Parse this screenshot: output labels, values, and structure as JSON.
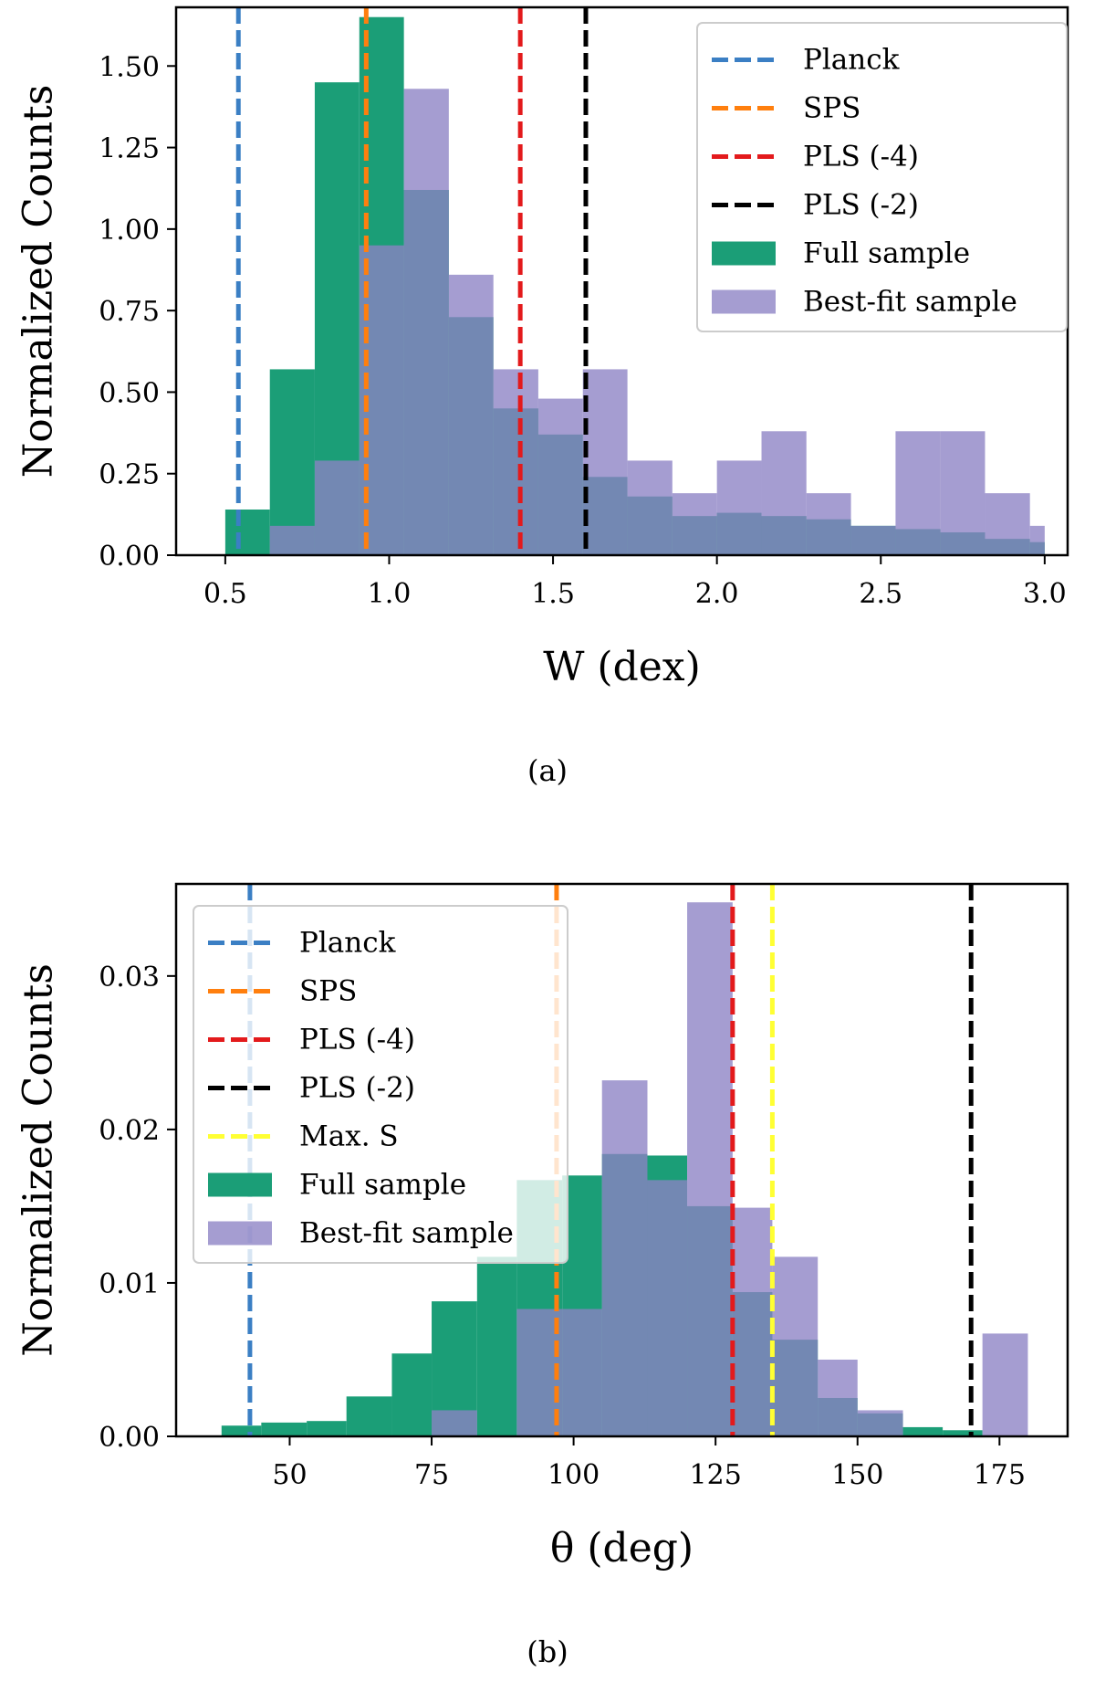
{
  "chart_data": [
    {
      "type": "bar",
      "panel_label": "(a)",
      "xlabel": "W (dex)",
      "ylabel": "Normalized Counts",
      "xlim": [
        0.35,
        3.07
      ],
      "ylim": [
        0,
        1.68
      ],
      "xticks": [
        0.5,
        1.0,
        1.5,
        2.0,
        2.5,
        3.0
      ],
      "xtick_labels": [
        "0.5",
        "1.0",
        "1.5",
        "2.0",
        "2.5",
        "3.0"
      ],
      "yticks": [
        0,
        0.25,
        0.5,
        0.75,
        1.0,
        1.25,
        1.5
      ],
      "ytick_labels": [
        "0.00",
        "0.25",
        "0.50",
        "0.75",
        "1.00",
        "1.25",
        "1.50"
      ],
      "grid": false,
      "legend_position": "top-right",
      "series": [
        {
          "name": "Full sample",
          "color": "#1b9e77",
          "bin_edges": [
            0.5,
            0.636,
            0.773,
            0.909,
            1.045,
            1.182,
            1.318,
            1.455,
            1.591,
            1.727,
            1.864,
            2.0,
            2.136,
            2.273,
            2.409,
            2.545,
            2.682,
            2.818,
            2.955,
            3.0
          ],
          "values": [
            0.14,
            0.57,
            1.45,
            1.65,
            1.12,
            0.73,
            0.45,
            0.37,
            0.24,
            0.18,
            0.12,
            0.13,
            0.12,
            0.11,
            0.09,
            0.08,
            0.07,
            0.05,
            0.04
          ]
        },
        {
          "name": "Best-fit sample",
          "color": "#8c82c4",
          "bin_edges": [
            0.636,
            0.773,
            0.909,
            1.045,
            1.182,
            1.318,
            1.455,
            1.591,
            1.727,
            1.864,
            2.0,
            2.136,
            2.273,
            2.409,
            2.545,
            2.682,
            2.818,
            2.955,
            3.0
          ],
          "values": [
            0.09,
            0.29,
            0.95,
            1.43,
            0.86,
            0.57,
            0.48,
            0.57,
            0.29,
            0.19,
            0.29,
            0.38,
            0.19,
            0.09,
            0.38,
            0.38,
            0.19,
            0.09
          ]
        }
      ],
      "vlines": [
        {
          "name": "Planck",
          "x": 0.54,
          "color": "#3b7fc4"
        },
        {
          "name": "SPS",
          "x": 0.93,
          "color": "#ff7f0e"
        },
        {
          "name": "PLS (-4)",
          "x": 1.4,
          "color": "#e31a1c"
        },
        {
          "name": "PLS (-2)",
          "x": 1.6,
          "color": "#000000"
        }
      ],
      "legend": [
        "Planck",
        "SPS",
        "PLS (-4)",
        "PLS (-2)",
        "Full sample",
        "Best-fit sample"
      ]
    },
    {
      "type": "bar",
      "panel_label": "(b)",
      "xlabel": "θ (deg)",
      "ylabel": "Normalized Counts",
      "xlim": [
        30,
        187
      ],
      "ylim": [
        0,
        0.036
      ],
      "xticks": [
        50,
        75,
        100,
        125,
        150,
        175
      ],
      "xtick_labels": [
        "50",
        "75",
        "100",
        "125",
        "150",
        "175"
      ],
      "yticks": [
        0,
        0.01,
        0.02,
        0.03
      ],
      "ytick_labels": [
        "0.00",
        "0.01",
        "0.02",
        "0.03"
      ],
      "grid": false,
      "legend_position": "top-left",
      "series": [
        {
          "name": "Full sample",
          "color": "#1b9e77",
          "bin_edges": [
            38,
            45,
            53,
            60,
            68,
            75,
            83,
            90,
            98,
            105,
            113,
            120,
            128,
            135,
            143,
            150,
            158,
            165,
            172,
            180
          ],
          "values": [
            0.0007,
            0.0009,
            0.001,
            0.0026,
            0.0054,
            0.0088,
            0.0117,
            0.0167,
            0.017,
            0.0184,
            0.0183,
            0.015,
            0.0094,
            0.0063,
            0.0025,
            0.0015,
            0.0006,
            0.0004,
            0.0
          ]
        },
        {
          "name": "Best-fit sample",
          "color": "#8c82c4",
          "bin_edges": [
            75,
            83,
            90,
            98,
            105,
            113,
            120,
            128,
            135,
            143,
            150,
            158,
            165,
            172,
            180
          ],
          "values": [
            0.0017,
            0.0,
            0.0083,
            0.0083,
            0.0232,
            0.0167,
            0.0348,
            0.0149,
            0.0117,
            0.005,
            0.0017,
            0.0,
            0.0,
            0.0067
          ]
        }
      ],
      "vlines": [
        {
          "name": "Planck",
          "x": 43,
          "color": "#3b7fc4"
        },
        {
          "name": "SPS",
          "x": 97,
          "color": "#ff7f0e"
        },
        {
          "name": "PLS (-4)",
          "x": 128,
          "color": "#e31a1c"
        },
        {
          "name": "PLS (-2)",
          "x": 170,
          "color": "#000000"
        },
        {
          "name": "Max. S",
          "x": 135,
          "color": "#ffff33"
        }
      ],
      "legend": [
        "Planck",
        "SPS",
        "PLS (-4)",
        "PLS (-2)",
        "Max. S",
        "Full sample",
        "Best-fit sample"
      ]
    }
  ]
}
